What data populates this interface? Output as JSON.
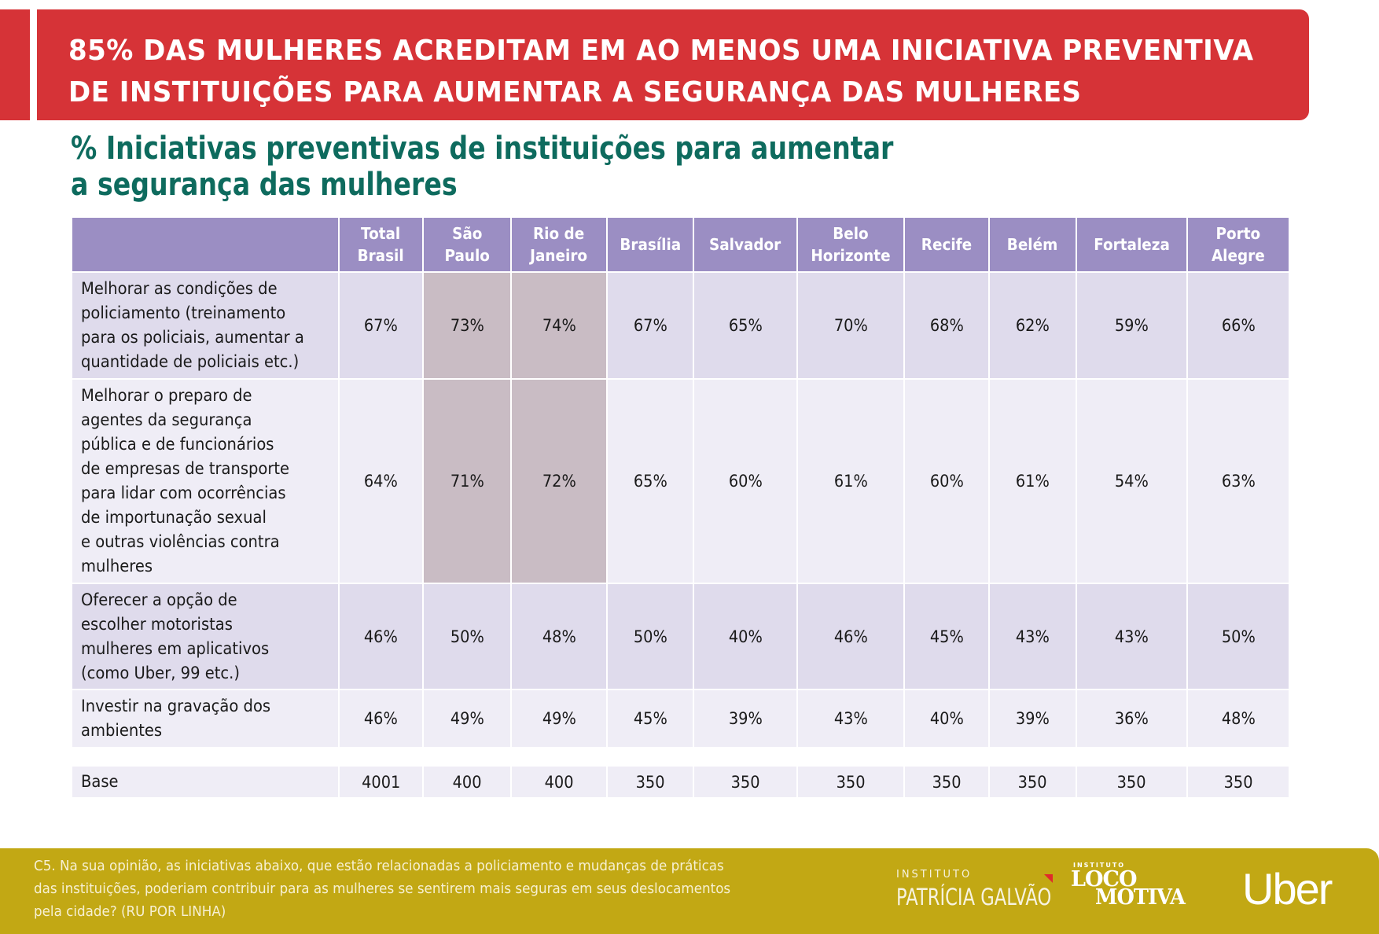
{
  "banner": {
    "title_line1": "85% DAS MULHERES ACREDITAM EM AO MENOS UMA INICIATIVA PREVENTIVA",
    "title_line2": "DE INSTITUIÇÕES PARA AUMENTAR A SEGURANÇA DAS MULHERES"
  },
  "subtitle": {
    "line1": "% Iniciativas preventivas de instituições para aumentar",
    "line2": "a segurança das mulheres"
  },
  "colors": {
    "banner": "#d63337",
    "subtitle": "#0e6b5e",
    "header": "#9b8ec3",
    "row_odd": "#dfdbec",
    "row_even": "#efedf6",
    "highlight": "#c9bcc4",
    "footer": "#c2a814"
  },
  "table": {
    "columns": [
      "Total\nBrasil",
      "São\nPaulo",
      "Rio de\nJaneiro",
      "Brasília",
      "Salvador",
      "Belo\nHorizonte",
      "Recife",
      "Belém",
      "Fortaleza",
      "Porto\nAlegre"
    ],
    "rows": [
      {
        "label": "Melhorar as condições de\npoliciamento (treinamento\npara os policiais, aumentar a\nquantidade de policiais etc.)",
        "values": [
          "67%",
          "73%",
          "74%",
          "67%",
          "65%",
          "70%",
          "68%",
          "62%",
          "59%",
          "66%"
        ],
        "highlighted": [
          1,
          2
        ]
      },
      {
        "label": "Melhorar o preparo de\nagentes da segurança\npública e de funcionários\nde empresas de transporte\npara lidar com ocorrências\nde importunação sexual\ne outras violências contra\nmulheres",
        "values": [
          "64%",
          "71%",
          "72%",
          "65%",
          "60%",
          "61%",
          "60%",
          "61%",
          "54%",
          "63%"
        ],
        "highlighted": [
          1,
          2
        ]
      },
      {
        "label": "Oferecer a opção de\nescolher motoristas\nmulheres em aplicativos\n(como Uber, 99 etc.)",
        "values": [
          "46%",
          "50%",
          "48%",
          "50%",
          "40%",
          "46%",
          "45%",
          "43%",
          "43%",
          "50%"
        ],
        "highlighted": []
      },
      {
        "label": "Investir na gravação dos\nambientes",
        "values": [
          "46%",
          "49%",
          "49%",
          "45%",
          "39%",
          "43%",
          "40%",
          "39%",
          "36%",
          "48%"
        ],
        "highlighted": []
      }
    ],
    "base": {
      "label": "Base",
      "values": [
        "4001",
        "400",
        "400",
        "350",
        "350",
        "350",
        "350",
        "350",
        "350",
        "350"
      ]
    }
  },
  "footer": {
    "note": "C5. Na sua opinião, as iniciativas abaixo, que estão relacionadas a policiamento e mudanças de práticas\ndas instituições, poderiam contribuir para as mulheres se sentirem mais seguras em seus deslocamentos\npela cidade? (RU POR LINHA)",
    "logos": {
      "patricia_galvao_small": "INSTITUTO",
      "patricia_galvao_name": "PATRÍCIA GALVÃO",
      "locomotiva_small": "INSTITUTO",
      "locomotiva_line1": "LOCO",
      "locomotiva_line2": "MOTIVA",
      "uber": "Uber"
    }
  }
}
